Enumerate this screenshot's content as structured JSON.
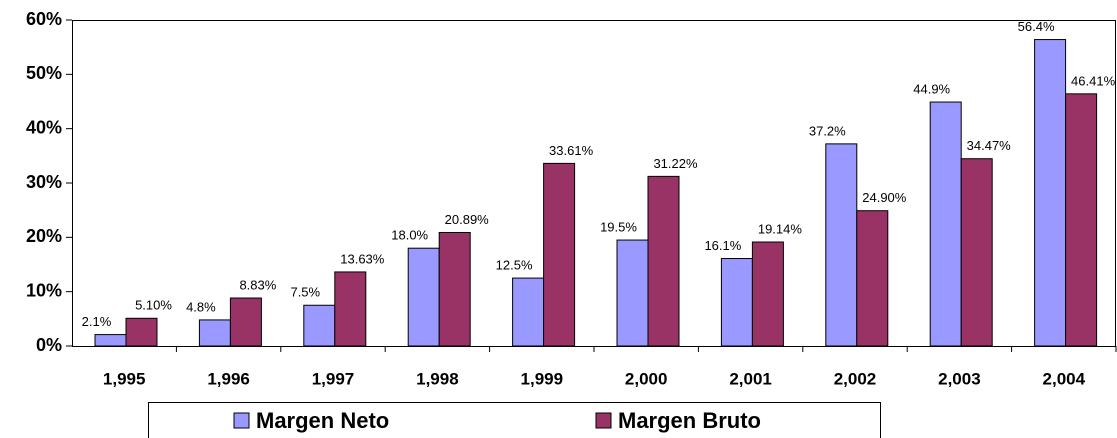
{
  "chart_data": {
    "type": "bar",
    "categories": [
      "1,995",
      "1,996",
      "1,997",
      "1,998",
      "1,999",
      "2,000",
      "2,001",
      "2,002",
      "2,003",
      "2,004"
    ],
    "series": [
      {
        "name": "Margen Neto",
        "color": "#9999ff",
        "values": [
          2.1,
          4.8,
          7.5,
          18.0,
          12.5,
          19.5,
          16.1,
          37.2,
          44.9,
          56.4
        ],
        "value_labels": [
          "2.1%",
          "4.8%",
          "7.5%",
          "18.0%",
          "12.5%",
          "19.5%",
          "16.1%",
          "37.2%",
          "44.9%",
          "56.4%"
        ]
      },
      {
        "name": "Margen Bruto",
        "color": "#993366",
        "values": [
          5.1,
          8.83,
          13.63,
          20.89,
          33.61,
          31.22,
          19.14,
          24.9,
          34.47,
          46.41
        ],
        "value_labels": [
          "5.10%",
          "8.83%",
          "13.63%",
          "20.89%",
          "33.61%",
          "31.22%",
          "19.14%",
          "24.90%",
          "34.47%",
          "46.41%"
        ]
      }
    ],
    "ylim": [
      0,
      60
    ],
    "yticks": [
      {
        "value": 0,
        "label": "0%"
      },
      {
        "value": 10,
        "label": "10%"
      },
      {
        "value": 20,
        "label": "20%"
      },
      {
        "value": 30,
        "label": "30%"
      },
      {
        "value": 40,
        "label": "40%"
      },
      {
        "value": 50,
        "label": "50%"
      },
      {
        "value": 60,
        "label": "60%"
      }
    ],
    "legend": "bottom"
  }
}
